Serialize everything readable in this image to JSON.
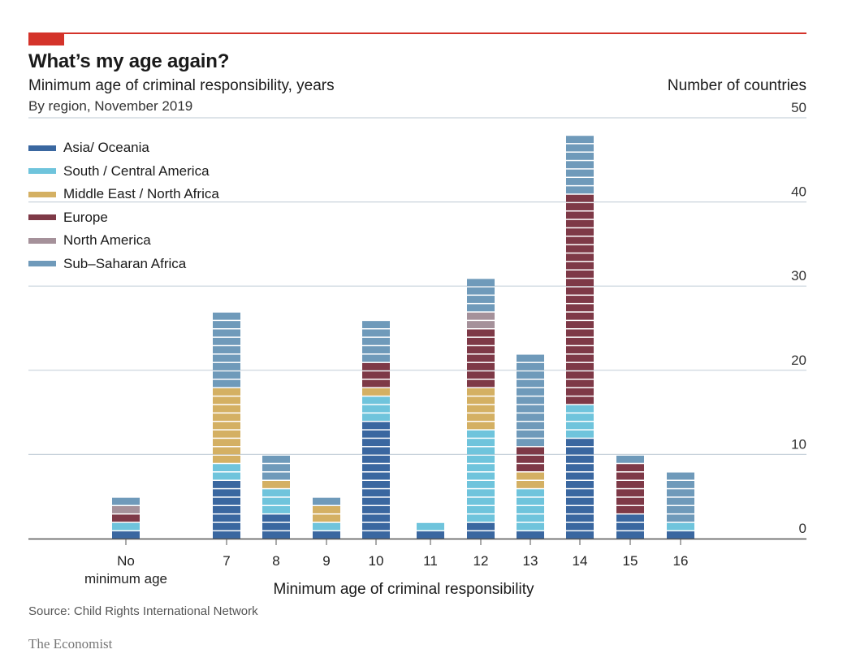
{
  "header": {
    "title": "What’s my age again?",
    "subtitle": "Minimum age of criminal responsibility, years",
    "subsubtitle": "By region, November 2019",
    "unit_label": "Number of countries"
  },
  "footer": {
    "source": "Source: Child Rights International Network",
    "brand": "The Economist"
  },
  "colors": {
    "accent": "#d4332a",
    "grid": "#c9d3dc",
    "axis": "#555555"
  },
  "chart_data": {
    "type": "bar",
    "stacked": true,
    "title": "What’s my age again?",
    "subtitle": "Minimum age of criminal responsibility, years",
    "xlabel": "Minimum age of criminal responsibility",
    "ylabel": "Number of countries",
    "ylim": [
      0,
      50
    ],
    "yticks": [
      0,
      10,
      20,
      30,
      40,
      50
    ],
    "grid": true,
    "legend_placement": "top-left",
    "categories": [
      "No\nminimum age",
      "7",
      "8",
      "9",
      "10",
      "11",
      "12",
      "13",
      "14",
      "15",
      "16"
    ],
    "series": [
      {
        "name": "Asia/ Oceania",
        "color": "#3a67a0",
        "values": [
          1,
          7,
          3,
          1,
          14,
          1,
          2,
          1,
          12,
          3,
          1
        ]
      },
      {
        "name": "South / Central America",
        "color": "#6fc4dc",
        "values": [
          1,
          2,
          3,
          1,
          3,
          1,
          11,
          5,
          4,
          0,
          1
        ]
      },
      {
        "name": "Middle East / North Africa",
        "color": "#d4b063",
        "values": [
          0,
          9,
          1,
          2,
          1,
          0,
          5,
          2,
          0,
          0,
          0
        ]
      },
      {
        "name": "Europe",
        "color": "#7e3947",
        "values": [
          1,
          0,
          0,
          0,
          3,
          0,
          7,
          3,
          25,
          6,
          0
        ]
      },
      {
        "name": "North America",
        "color": "#a5919a",
        "values": [
          1,
          0,
          0,
          0,
          0,
          0,
          2,
          0,
          0,
          0,
          0
        ]
      },
      {
        "name": "Sub–Saharan Africa",
        "color": "#6f9aba",
        "values": [
          1,
          9,
          3,
          1,
          5,
          0,
          4,
          11,
          7,
          1,
          6
        ]
      }
    ]
  }
}
